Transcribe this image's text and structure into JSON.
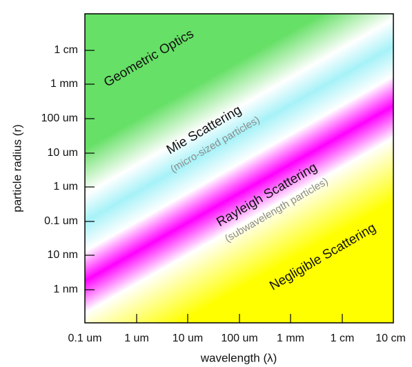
{
  "diagram": {
    "x_axis": {
      "title": "wavelength (λ)",
      "ticks": [
        "0.1 um",
        "1 um",
        "10 um",
        "100 um",
        "1 mm",
        "1 cm",
        "10 cm"
      ]
    },
    "y_axis": {
      "title": "particle radius (r)",
      "ticks": [
        "1 cm",
        "1 mm",
        "100 um",
        "10 um",
        "1 um",
        "0.1 um",
        "10 nm",
        "1 nm"
      ]
    },
    "regions": [
      {
        "name": "Geometric Optics"
      },
      {
        "name": "Mie Scattering",
        "subtitle": "(micro-sized particles)"
      },
      {
        "name": "Rayleigh Scattering",
        "subtitle": "(subwavelength particles)"
      },
      {
        "name": "Negligible Scattering"
      }
    ],
    "colors": {
      "geometric_optics": "#66e066",
      "mie_scattering": "#a6f2f8",
      "rayleigh_scattering": "#ff00ff",
      "negligible_scattering": "#ffff00",
      "transition": "#ffffff"
    }
  }
}
